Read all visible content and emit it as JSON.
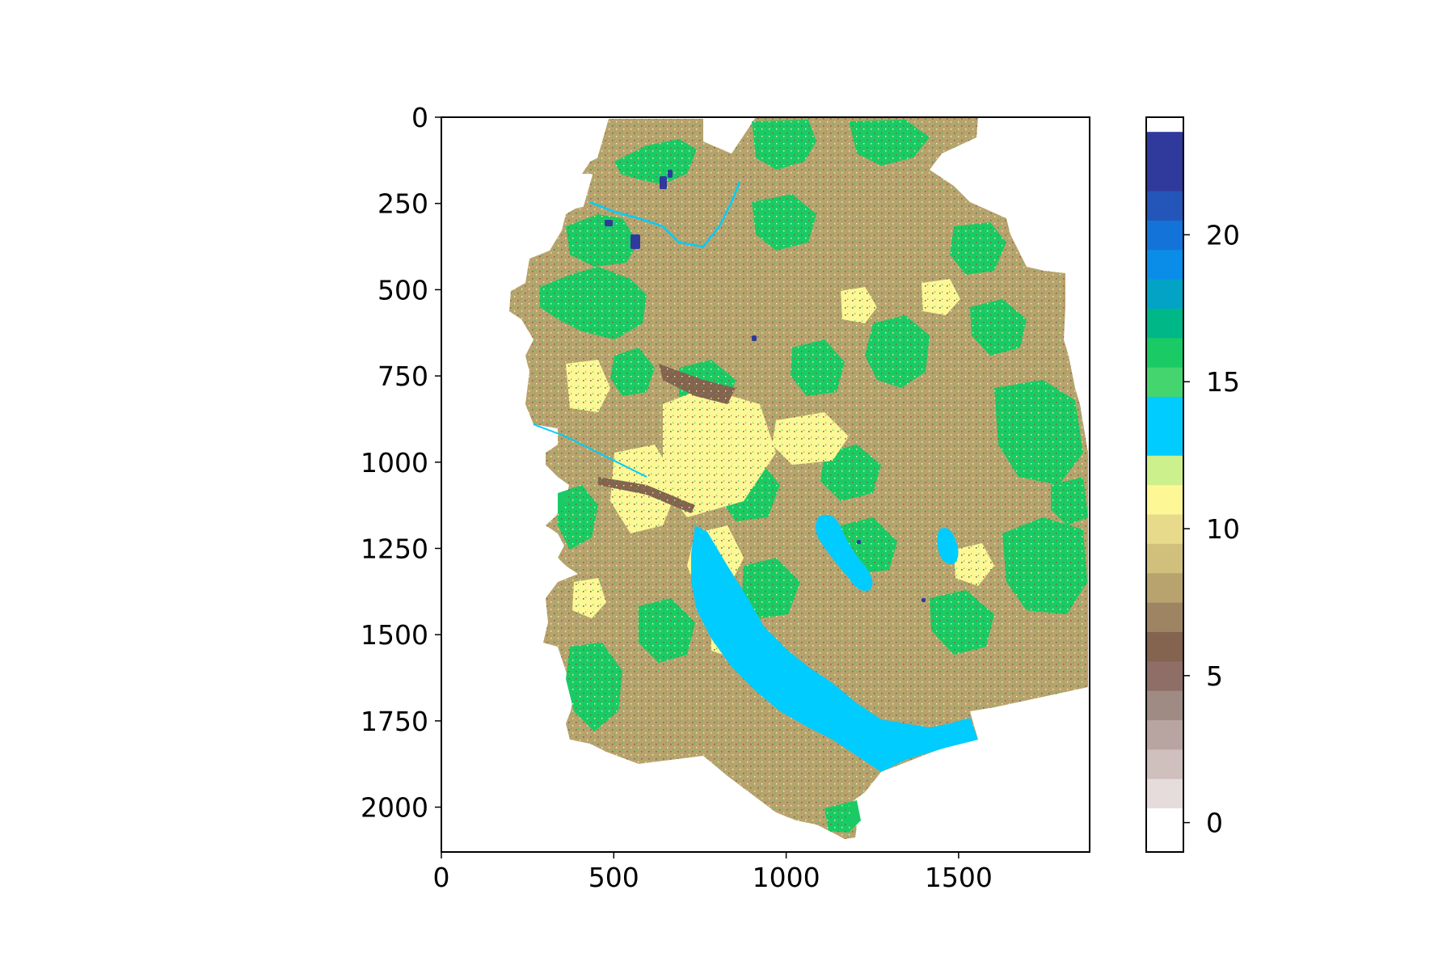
{
  "chart_data": {
    "type": "heatmap",
    "title": "",
    "xlabel": "",
    "ylabel": "",
    "xlim": [
      0,
      1880
    ],
    "ylim": [
      2130,
      0
    ],
    "xticks": [
      0,
      500,
      1000,
      1500
    ],
    "yticks": [
      0,
      250,
      500,
      750,
      1000,
      1250,
      1500,
      1750,
      2000
    ],
    "colorbar": {
      "range": [
        -1,
        24
      ],
      "ticks": [
        0,
        5,
        10,
        15,
        20
      ],
      "levels": [
        {
          "value": 0,
          "color": "#ffffff"
        },
        {
          "value": 1,
          "color": "#e6dcdc"
        },
        {
          "value": 2,
          "color": "#cfbfbd"
        },
        {
          "value": 3,
          "color": "#b8a4a0"
        },
        {
          "value": 4,
          "color": "#a08a84"
        },
        {
          "value": 5,
          "color": "#8e6e66"
        },
        {
          "value": 6,
          "color": "#84634f"
        },
        {
          "value": 7,
          "color": "#9e8462"
        },
        {
          "value": 8,
          "color": "#b8a36e"
        },
        {
          "value": 9,
          "color": "#d1c07c"
        },
        {
          "value": 10,
          "color": "#e7db8b"
        },
        {
          "value": 11,
          "color": "#fdf795"
        },
        {
          "value": 12,
          "color": "#ccf08c"
        },
        {
          "value": 13,
          "color": "#00ccff"
        },
        {
          "value": 14,
          "color": "#00ccff"
        },
        {
          "value": 15,
          "color": "#45d56f"
        },
        {
          "value": 16,
          "color": "#1acb65"
        },
        {
          "value": 17,
          "color": "#00b887"
        },
        {
          "value": 18,
          "color": "#02a3c4"
        },
        {
          "value": 19,
          "color": "#0a8de8"
        },
        {
          "value": 20,
          "color": "#1473d8"
        },
        {
          "value": 21,
          "color": "#2455b8"
        },
        {
          "value": 22,
          "color": "#2f3a9c"
        },
        {
          "value": 23,
          "color": "#2f3a9c"
        }
      ]
    },
    "dominant_classes": {
      "water": 14,
      "forest": 16,
      "agriculture": 8,
      "settlement": 11,
      "wetland": 23
    }
  }
}
